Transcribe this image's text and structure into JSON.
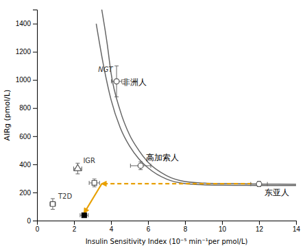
{
  "chart_data": {
    "type": "line",
    "xlabel": "Insulin Sensitivity Index (10⁻⁵ min⁻¹per pmol/L)",
    "ylabel": "AIRg (pmol/L)",
    "xlim": [
      0,
      14
    ],
    "ylim": [
      0,
      1500
    ],
    "xticks": [
      0,
      2,
      4,
      6,
      8,
      10,
      12,
      14
    ],
    "yticks": [
      0,
      200,
      400,
      600,
      800,
      1000,
      1200,
      1400
    ],
    "grid": false,
    "series": [
      {
        "x": [
          3.2,
          3.6,
          4.0,
          4.5,
          5.0,
          5.5,
          6.0,
          7.0,
          8.0,
          9.0,
          10.0,
          11.0,
          12.0,
          12.5,
          13.0,
          14.0
        ],
        "values": [
          1400,
          1100,
          860,
          660,
          530,
          440,
          375,
          295,
          263,
          255,
          252,
          251,
          250,
          250,
          250,
          250
        ],
        "color": "#666666"
      },
      {
        "x": [
          3.5,
          3.8,
          4.0,
          4.5,
          5.0,
          5.5,
          6.0,
          7.0,
          8.0,
          9.0,
          10.0,
          11.0,
          12.0,
          12.5,
          13.0,
          14.0
        ],
        "values": [
          1500,
          1250,
          1050,
          780,
          610,
          500,
          415,
          320,
          278,
          267,
          263,
          262,
          260,
          259,
          259,
          258
        ],
        "color": "#666666"
      }
    ],
    "points": [
      {
        "x": 4.3,
        "y": 990,
        "xerr": 0.28,
        "yerr": 110,
        "marker": "circle",
        "label": "非洲人"
      },
      {
        "x": 5.6,
        "y": 390,
        "xerr": 0.55,
        "yerr": 28,
        "marker": "circle",
        "label": "高加索人"
      },
      {
        "x": 12.0,
        "y": 260,
        "xerr": 0.45,
        "yerr": 18,
        "marker": "circle",
        "label": "东亚人"
      },
      {
        "x": 2.2,
        "y": 370,
        "xerr": 0.22,
        "yerr": 38,
        "marker": "triangle",
        "label": "IGR"
      },
      {
        "x": 3.1,
        "y": 268,
        "xerr": 0.28,
        "yerr": 28,
        "marker": "square"
      },
      {
        "x": 0.85,
        "y": 118,
        "xerr": 0.15,
        "yerr": 38,
        "marker": "square",
        "label": "T2D"
      },
      {
        "x": 2.55,
        "y": 38,
        "xerr": 0.22,
        "yerr": 7,
        "marker": "square",
        "color": "#000000"
      }
    ],
    "arrows": [
      {
        "x": [
          11.6,
          3.5
        ],
        "y": [
          262,
          262
        ],
        "line_style": "dashed",
        "color": "#E8A000"
      },
      {
        "x": [
          3.5,
          2.55
        ],
        "y": [
          262,
          55
        ],
        "line_style": "solid",
        "color": "#E8A000"
      }
    ],
    "annotations": [
      {
        "text": "NGT",
        "x": 3.7,
        "y": 1055
      }
    ]
  }
}
